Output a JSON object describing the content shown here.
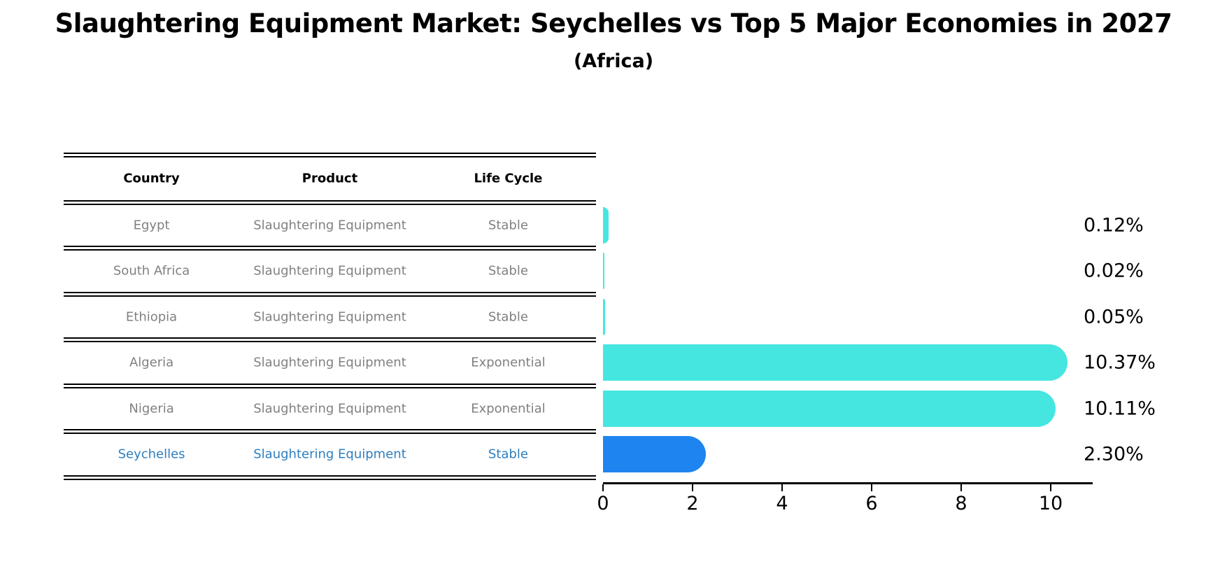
{
  "title": "Slaughtering Equipment Market: Seychelles vs Top 5 Major Economies in 2027",
  "subtitle": "(Africa)",
  "table": {
    "headers": [
      "Country",
      "Product",
      "Life Cycle"
    ],
    "rows": [
      {
        "country": "Egypt",
        "product": "Slaughtering Equipment",
        "life_cycle": "Stable",
        "highlight": false
      },
      {
        "country": "South Africa",
        "product": "Slaughtering Equipment",
        "life_cycle": "Stable",
        "highlight": false
      },
      {
        "country": "Ethiopia",
        "product": "Slaughtering Equipment",
        "life_cycle": "Stable",
        "highlight": false
      },
      {
        "country": "Algeria",
        "product": "Slaughtering Equipment",
        "life_cycle": "Exponential",
        "highlight": false
      },
      {
        "country": "Nigeria",
        "product": "Slaughtering Equipment",
        "life_cycle": "Exponential",
        "highlight": false
      },
      {
        "country": "Seychelles",
        "product": "Slaughtering Equipment",
        "life_cycle": "Stable",
        "highlight": true
      }
    ]
  },
  "chart_data": {
    "type": "bar",
    "orientation": "horizontal",
    "title": "Slaughtering Equipment Market: Seychelles vs Top 5 Major Economies in 2027",
    "subtitle": "(Africa)",
    "categories": [
      "Egypt",
      "South Africa",
      "Ethiopia",
      "Algeria",
      "Nigeria",
      "Seychelles"
    ],
    "values": [
      0.12,
      0.02,
      0.05,
      10.37,
      10.11,
      2.3
    ],
    "value_labels": [
      "0.12%",
      "0.02%",
      "0.05%",
      "10.37%",
      "10.11%",
      "2.30%"
    ],
    "highlight_index": 5,
    "xlabel": "",
    "ylabel": "",
    "xlim": [
      0,
      10.9
    ],
    "xticks": [
      0,
      2,
      4,
      6,
      8,
      10
    ],
    "grid": false,
    "legend": false
  },
  "colors": {
    "bar": "#46e6e0",
    "highlight_bar": "#1e85f0",
    "highlight_text": "#2e7ebf",
    "row_text": "#808080",
    "header_text": "#000000",
    "axis": "#000000"
  }
}
